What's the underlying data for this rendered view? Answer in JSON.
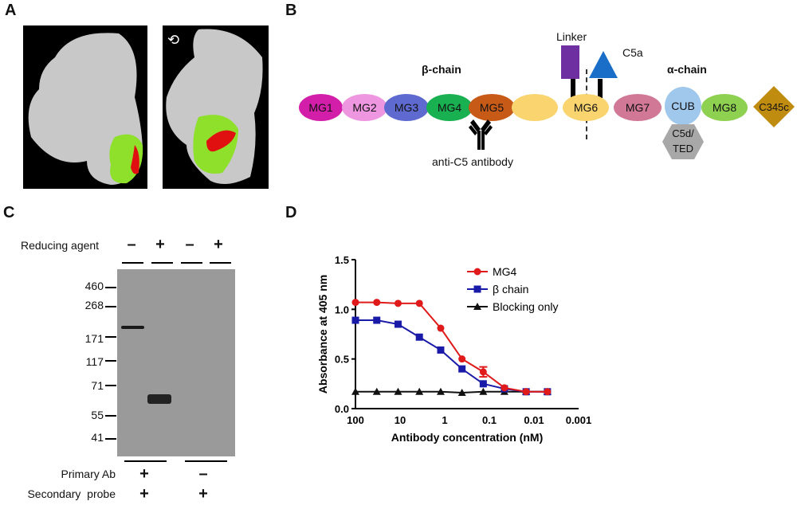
{
  "panels": {
    "A": {
      "letter": "A",
      "views": [
        {
          "name": "front-view",
          "colors": {
            "background": "#000000",
            "protein": "#c8c8c8",
            "epitope_region": "#8ee02a",
            "epitope_core": "#e01010"
          }
        },
        {
          "name": "rotated-view",
          "rotation_icon": "rotate-arrow-icon",
          "colors": {
            "background": "#000000",
            "protein": "#c8c8c8",
            "epitope_region": "#8ee02a",
            "epitope_core": "#e01010"
          }
        }
      ]
    },
    "B": {
      "letter": "B",
      "beta_chain_label": "β-chain",
      "alpha_chain_label": "α-chain",
      "linker_label": "Linker",
      "c5a_label": "C5a",
      "antibody_label": "anti-C5 antibody",
      "domains": [
        {
          "label": "MG1",
          "color": "#d21ea8"
        },
        {
          "label": "MG2",
          "color": "#ee96e0"
        },
        {
          "label": "MG3",
          "color": "#5e6ad0"
        },
        {
          "label": "MG4",
          "color": "#18b050"
        },
        {
          "label": "MG5",
          "color": "#c85a18"
        },
        {
          "label": "MG6",
          "color": "#fad46e"
        },
        {
          "label": "MG7",
          "color": "#d07896"
        },
        {
          "label": "CUB",
          "color": "#a0c8ec"
        },
        {
          "label": "MG8",
          "color": "#8ed050"
        },
        {
          "label": "C345c",
          "color": "#c08c10"
        }
      ],
      "c5d_ted_label_line1": "C5d/",
      "c5d_ted_label_line2": "TED",
      "colors": {
        "linker": "#6e30a0",
        "c5a": "#1a6ec8",
        "c5d_ted": "#a8a8a8"
      }
    },
    "C": {
      "letter": "C",
      "reducing_agent_label": "Reducing agent",
      "reducing_agent_signs": [
        "–",
        "+",
        "–",
        "+"
      ],
      "mw_markers": [
        "460",
        "268",
        "171",
        "117",
        "71",
        "55",
        "41"
      ],
      "primary_ab_label": "Primary Ab",
      "primary_ab_signs": [
        "+",
        "–"
      ],
      "secondary_probe_label": "Secondary  probe",
      "secondary_probe_signs": [
        "+",
        "+"
      ],
      "bands": [
        {
          "lane": 1,
          "approx_kda": 190
        },
        {
          "lane": 2,
          "approx_kda": 64
        }
      ],
      "membrane_color": "#9a9a9a"
    },
    "D": {
      "letter": "D"
    }
  },
  "chart_data": {
    "type": "line",
    "title": "",
    "xlabel": "Antibody concentration (nM)",
    "ylabel": "Absorbance at 405 nm",
    "x_scale": "log (reversed)",
    "x_ticks": [
      "100",
      "10",
      "1",
      "0.1",
      "0.01",
      "0.001"
    ],
    "y_ticks": [
      "0.0",
      "0.5",
      "1.0",
      "1.5"
    ],
    "ylim": [
      0,
      1.5
    ],
    "xlim": [
      100,
      0.001
    ],
    "x": [
      100,
      33.3,
      11.1,
      3.7,
      1.23,
      0.41,
      0.137,
      0.046,
      0.015,
      0.005
    ],
    "series": [
      {
        "name": "MG4",
        "color": "#e01a1a",
        "marker": "circle",
        "values": [
          1.07,
          1.07,
          1.06,
          1.06,
          0.81,
          0.5,
          0.37,
          0.21,
          0.17,
          0.17
        ]
      },
      {
        "name": "β chain",
        "color": "#1a1aa8",
        "marker": "square",
        "values": [
          0.89,
          0.89,
          0.85,
          0.72,
          0.59,
          0.4,
          0.25,
          0.2,
          0.17,
          0.17
        ]
      },
      {
        "name": "Blocking only",
        "color": "#111111",
        "marker": "triangle",
        "values": [
          0.17,
          0.17,
          0.17,
          0.17,
          0.17,
          0.16,
          0.17,
          0.17,
          0.17,
          0.17
        ]
      }
    ],
    "legend_position": "upper right",
    "grid": false
  }
}
